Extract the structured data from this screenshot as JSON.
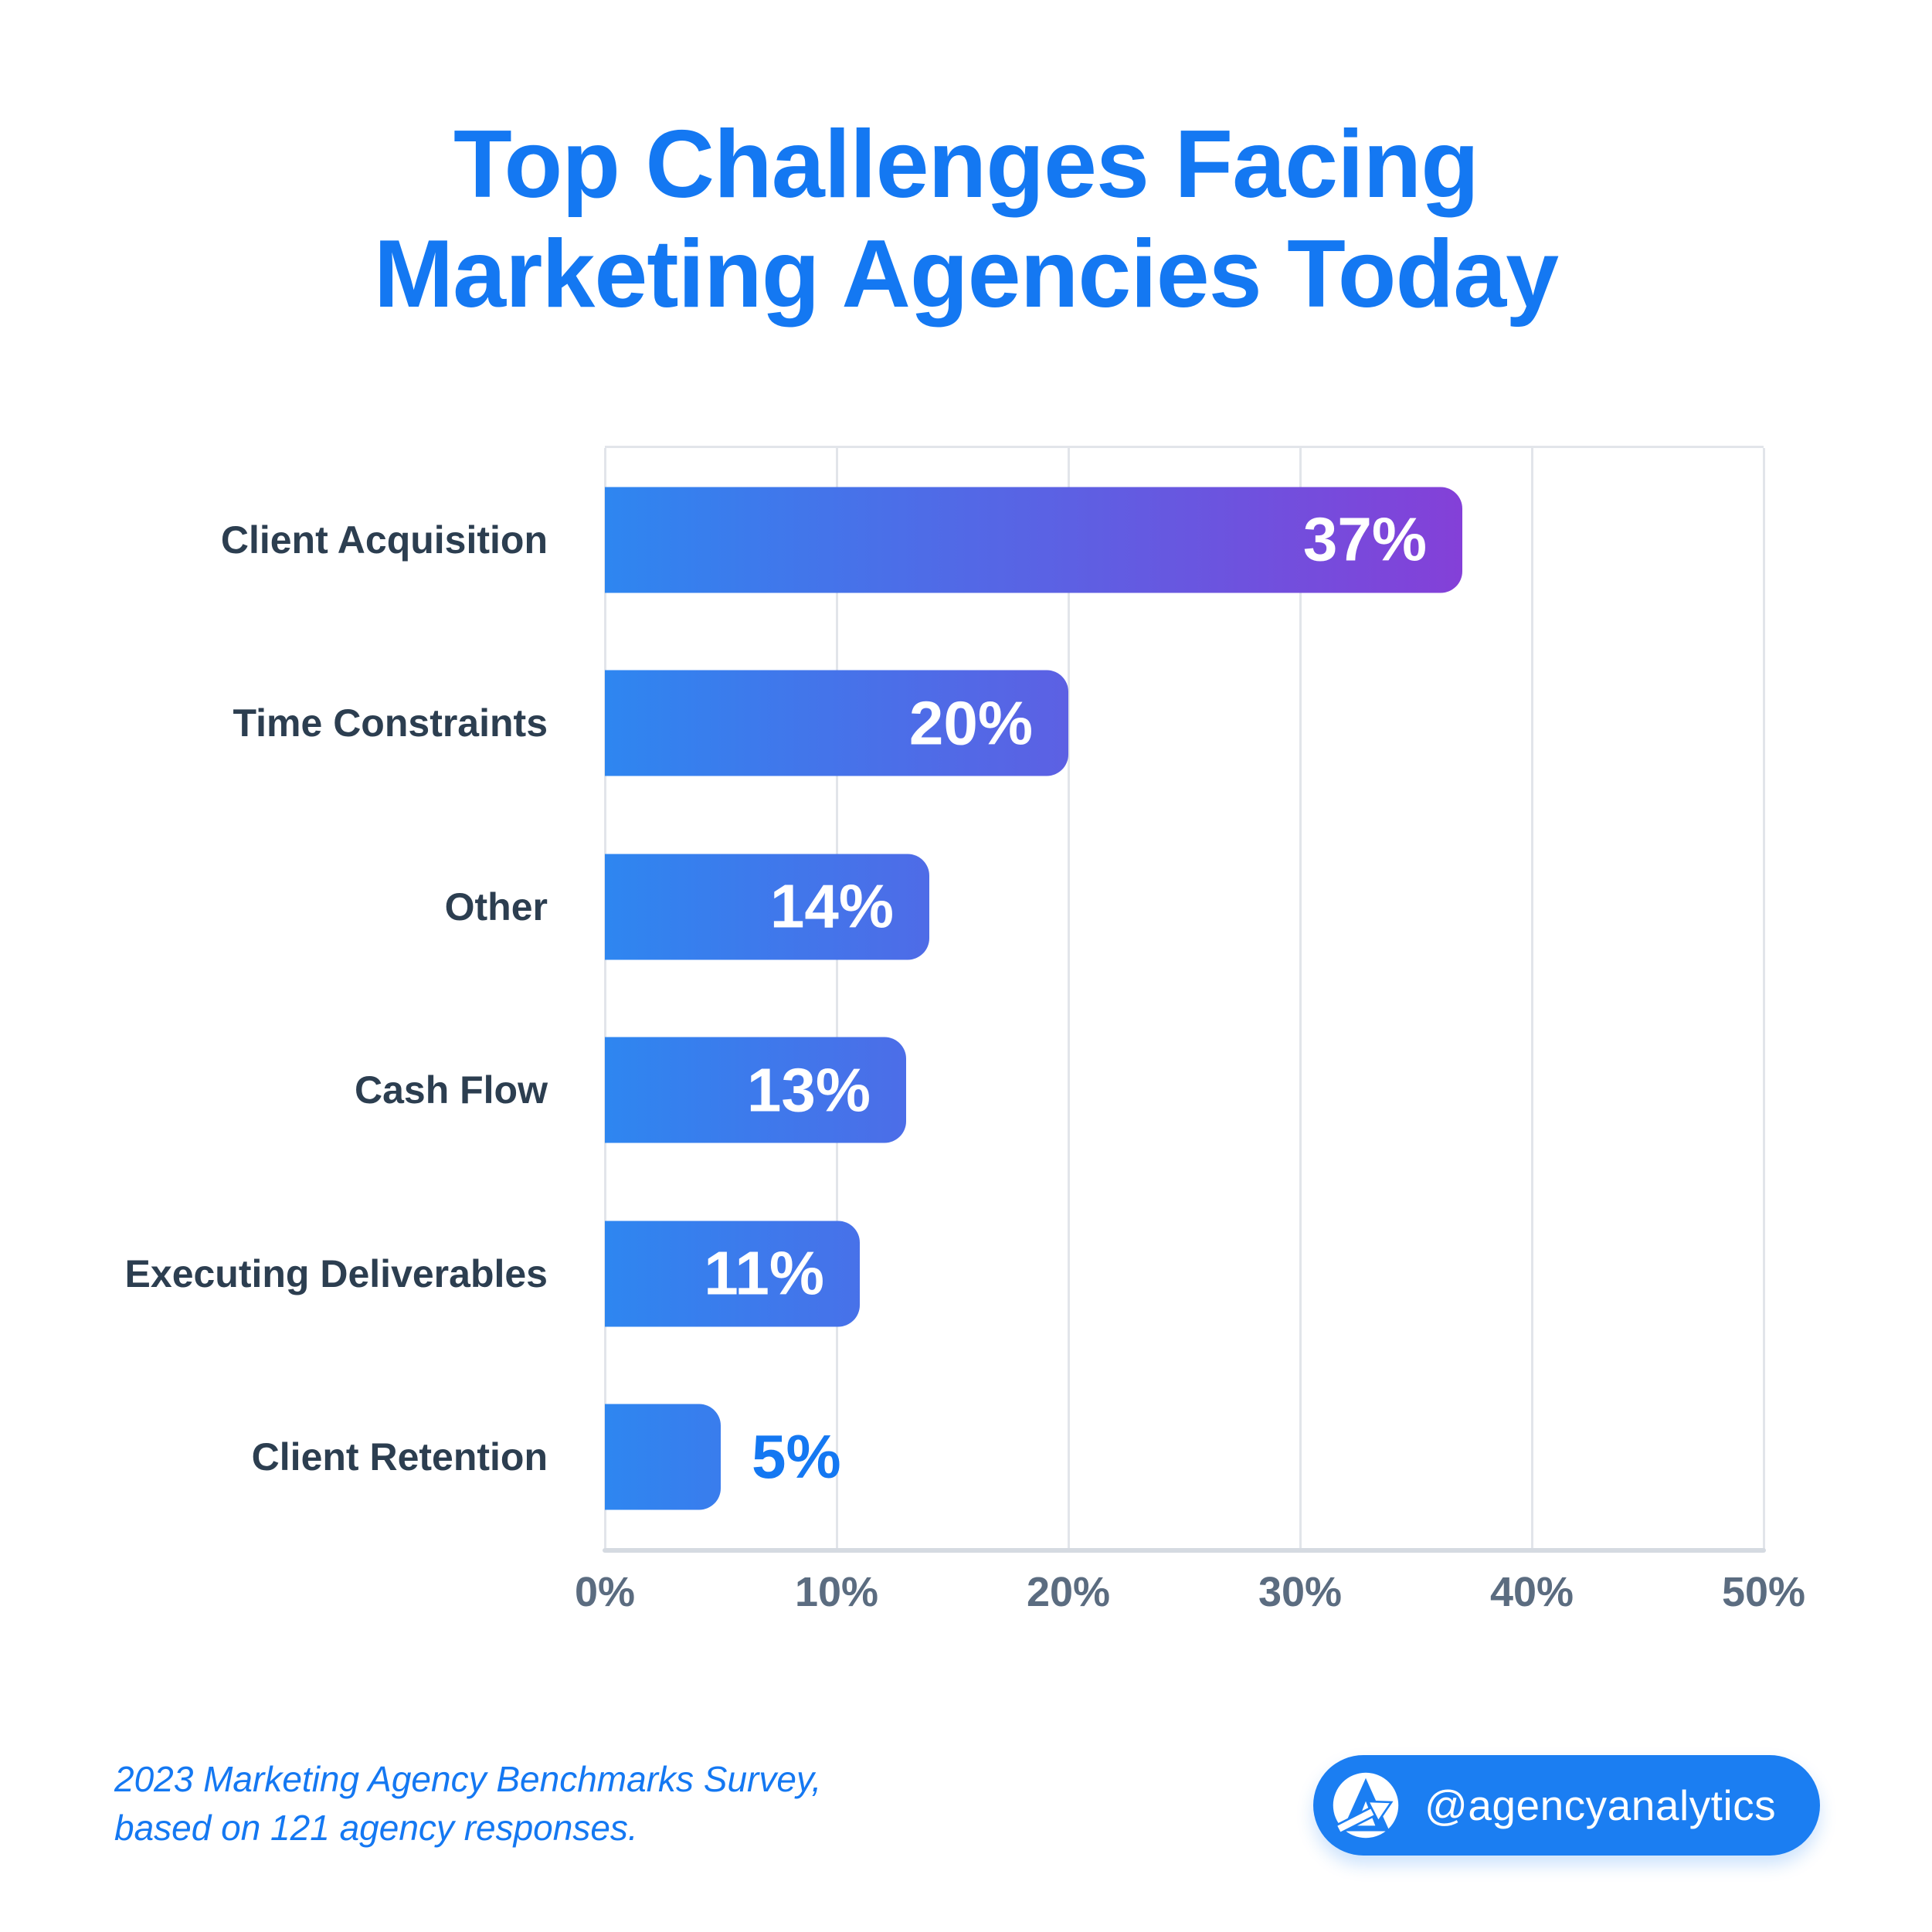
{
  "title": {
    "line1": "Top Challenges Facing",
    "line2": "Marketing Agencies Today"
  },
  "chart_data": {
    "type": "bar",
    "orientation": "horizontal",
    "title": "Top Challenges Facing Marketing Agencies Today",
    "categories": [
      "Client Acquisition",
      "Time Constraints",
      "Other",
      "Cash Flow",
      "Executing Deliverables",
      "Client Retention"
    ],
    "values": [
      37,
      20,
      14,
      13,
      11,
      5
    ],
    "value_labels": [
      "37%",
      "20%",
      "14%",
      "13%",
      "11%",
      "5%"
    ],
    "value_label_inside": [
      true,
      true,
      true,
      true,
      true,
      false
    ],
    "x_ticks": [
      "0%",
      "10%",
      "20%",
      "30%",
      "40%",
      "50%"
    ],
    "xlim": [
      0,
      50
    ],
    "xlabel": "",
    "ylabel": "",
    "grid": "vertical-only",
    "legend": "none"
  },
  "footer": {
    "line1": "2023 Marketing Agency Benchmarks Survey,",
    "line2": "based on 121 agency responses."
  },
  "badge": {
    "handle": "@agencyanalytics",
    "logo": "agencyanalytics-arrow-a"
  },
  "colors": {
    "background": "#FFFFFF",
    "title_blue": "#1478F2",
    "bar_gradient_start": "#2E86F0",
    "bar_gradient_end": "#8440D8",
    "category_text": "#2C3E50",
    "tick_text": "#5B6C80",
    "gridline": "#E2E5EA",
    "axis_line": "#D5DAE1",
    "value_text_inside": "#FFFFFF",
    "value_text_outside": "#1478F2",
    "badge_bg": "#1B7EF2",
    "badge_text": "#FFFFFF"
  }
}
